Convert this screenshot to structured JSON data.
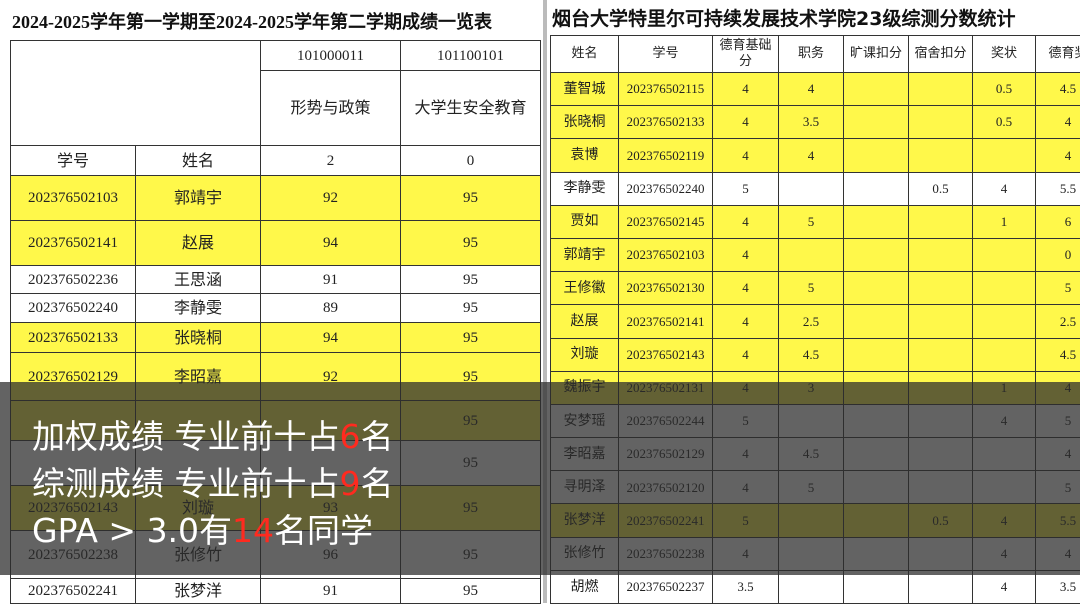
{
  "left_table": {
    "title": "2024-2025学年第一学期至2024-2025学年第二学期成绩一览表",
    "codes": [
      "101000011",
      "101100101"
    ],
    "courses": [
      "形势与政策",
      "大学生安全教育"
    ],
    "columns": [
      "学号",
      "姓名"
    ],
    "credits": [
      "2",
      "0"
    ],
    "rows": [
      {
        "id": "202376502103",
        "name": "郭靖宇",
        "scores": [
          "92",
          "95"
        ],
        "highlight": true
      },
      {
        "id": "202376502141",
        "name": "赵展",
        "scores": [
          "94",
          "95"
        ],
        "highlight": true
      },
      {
        "id": "202376502236",
        "name": "王思涵",
        "scores": [
          "91",
          "95"
        ],
        "highlight": false
      },
      {
        "id": "202376502240",
        "name": "李静雯",
        "scores": [
          "89",
          "95"
        ],
        "highlight": false
      },
      {
        "id": "202376502133",
        "name": "张晓桐",
        "scores": [
          "94",
          "95"
        ],
        "highlight": true
      },
      {
        "id": "202376502129",
        "name": "李昭嘉",
        "scores": [
          "92",
          "95"
        ],
        "highlight": true
      },
      {
        "scores": [
          null,
          "95"
        ],
        "highlight": true
      },
      {
        "scores": [
          null,
          "95"
        ],
        "highlight": false
      },
      {
        "id": "202376502143",
        "name": "刘璇",
        "scores": [
          "93",
          "95"
        ],
        "highlight": true
      },
      {
        "id": "202376502238",
        "name": "张修竹",
        "scores": [
          "96",
          "95"
        ],
        "highlight": false
      },
      {
        "id": "202376502241",
        "name": "张梦洋",
        "scores": [
          "91",
          "95"
        ],
        "highlight": false
      }
    ]
  },
  "right_table": {
    "title": "烟台大学特里尔可持续发展技术学院23级综测分数统计",
    "columns": [
      "姓名",
      "学号",
      "德育基础分",
      "职务",
      "旷课扣分",
      "宿舍扣分",
      "奖状",
      "德育奖"
    ],
    "rows": [
      {
        "cells": [
          "董智城",
          "202376502115",
          "4",
          "4",
          null,
          null,
          "0.5",
          "4.5"
        ],
        "highlight": true
      },
      {
        "cells": [
          "张晓桐",
          "202376502133",
          "4",
          "3.5",
          null,
          null,
          "0.5",
          "4"
        ],
        "highlight": true
      },
      {
        "cells": [
          "袁博",
          "202376502119",
          "4",
          "4",
          null,
          null,
          null,
          "4"
        ],
        "highlight": true
      },
      {
        "cells": [
          "李静雯",
          "202376502240",
          "5",
          null,
          null,
          "0.5",
          "4",
          "5.5"
        ],
        "highlight": false
      },
      {
        "cells": [
          "贾如",
          "202376502145",
          "4",
          "5",
          null,
          null,
          "1",
          "6"
        ],
        "highlight": true
      },
      {
        "cells": [
          "郭靖宇",
          "202376502103",
          "4",
          null,
          null,
          null,
          null,
          "0"
        ],
        "highlight": true
      },
      {
        "cells": [
          "王修徽",
          "202376502130",
          "4",
          "5",
          null,
          null,
          null,
          "5"
        ],
        "highlight": true
      },
      {
        "cells": [
          "赵展",
          "202376502141",
          "4",
          "2.5",
          null,
          null,
          null,
          "2.5"
        ],
        "highlight": true
      },
      {
        "cells": [
          "刘璇",
          "202376502143",
          "4",
          "4.5",
          null,
          null,
          null,
          "4.5"
        ],
        "highlight": true
      },
      {
        "cells": [
          "魏振宇",
          "202376502131",
          "4",
          "3",
          null,
          null,
          "1",
          "4"
        ],
        "highlight": true
      },
      {
        "cells": [
          "安梦瑶",
          "202376502244",
          "5",
          null,
          null,
          null,
          "4",
          "5"
        ],
        "highlight": false
      },
      {
        "cells": [
          "李昭嘉",
          "202376502129",
          "4",
          "4.5",
          null,
          null,
          null,
          "4"
        ],
        "highlight": false
      },
      {
        "cells": [
          "寻明泽",
          "202376502120",
          "4",
          "5",
          null,
          null,
          null,
          "5"
        ],
        "highlight": false
      },
      {
        "cells": [
          "张梦洋",
          "202376502241",
          "5",
          null,
          null,
          "0.5",
          "4",
          "5.5"
        ],
        "highlight": true
      },
      {
        "cells": [
          "张修竹",
          "202376502238",
          "4",
          null,
          null,
          null,
          "4",
          "4"
        ],
        "highlight": false
      },
      {
        "cells": [
          "胡燃",
          "202376502237",
          "3.5",
          null,
          null,
          null,
          "4",
          "3.5"
        ],
        "highlight": false
      }
    ]
  },
  "overlay": {
    "lines": [
      {
        "pre": "加权成绩 专业前十占",
        "num": "6",
        "post": "名"
      },
      {
        "pre": "综测成绩 专业前十占",
        "num": "9",
        "post": "名"
      },
      {
        "pre": "GPA > 3.0有",
        "num": "14",
        "post": "名同学"
      }
    ]
  }
}
